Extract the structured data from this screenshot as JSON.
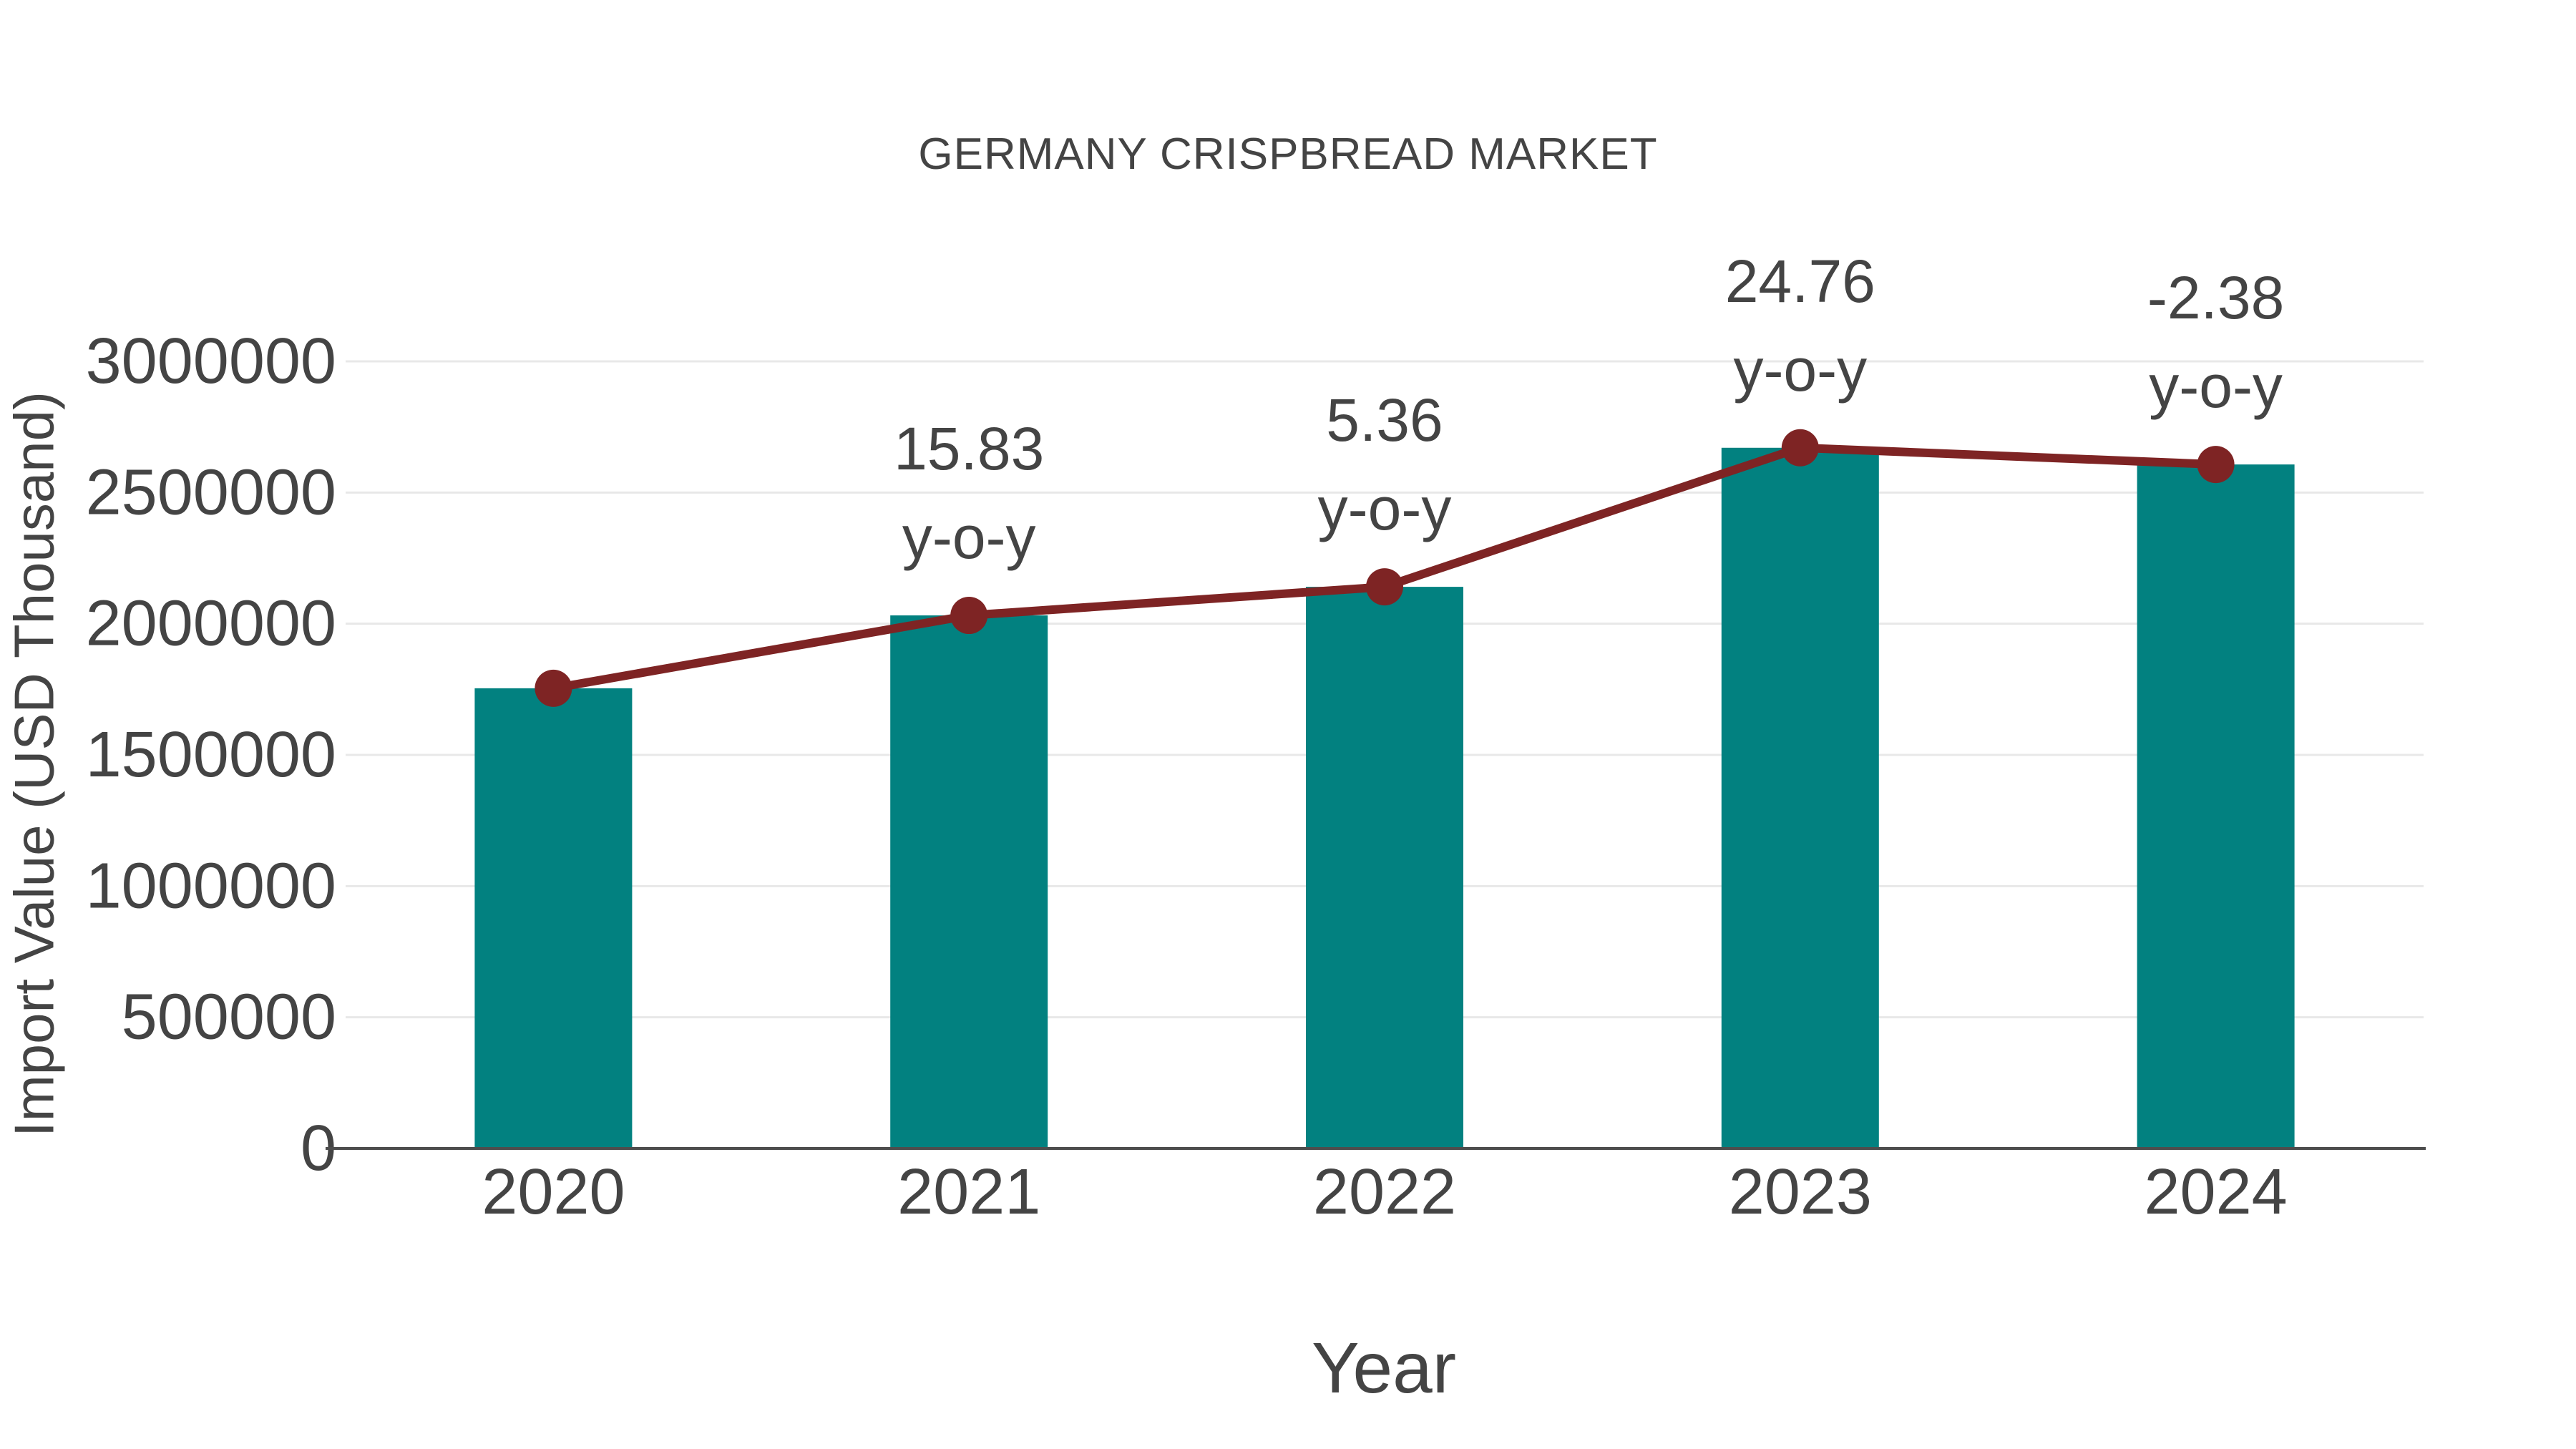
{
  "chart_data": {
    "type": "bar",
    "title": "GERMANY CRISPBREAD MARKET",
    "xlabel": "Year",
    "ylabel": "Import Value (USD Thousand)",
    "categories": [
      "2020",
      "2021",
      "2022",
      "2023",
      "2024"
    ],
    "series": [
      {
        "type": "bar",
        "values": [
          1754000,
          2031700,
          2140600,
          2670600,
          2607000
        ]
      },
      {
        "type": "line",
        "values": [
          1754000,
          2031700,
          2140600,
          2670600,
          2607000
        ]
      }
    ],
    "annotations": [
      {
        "category": "2021",
        "lines": [
          "15.83",
          "y-o-y"
        ]
      },
      {
        "category": "2022",
        "lines": [
          "5.36",
          "y-o-y"
        ]
      },
      {
        "category": "2023",
        "lines": [
          "24.76",
          "y-o-y"
        ]
      },
      {
        "category": "2024",
        "lines": [
          "-2.38",
          "y-o-y"
        ]
      }
    ],
    "yticks": [
      0,
      500000,
      1000000,
      1500000,
      2000000,
      2500000,
      3000000
    ],
    "ylim": [
      0,
      3000000
    ],
    "grid": true,
    "legend": false,
    "colors": {
      "bar": "#028180",
      "line": "#7e2424",
      "text": "#444444",
      "grid": "#e8e8e8",
      "axis": "#4d4d4d",
      "background": "#ffffff"
    }
  }
}
